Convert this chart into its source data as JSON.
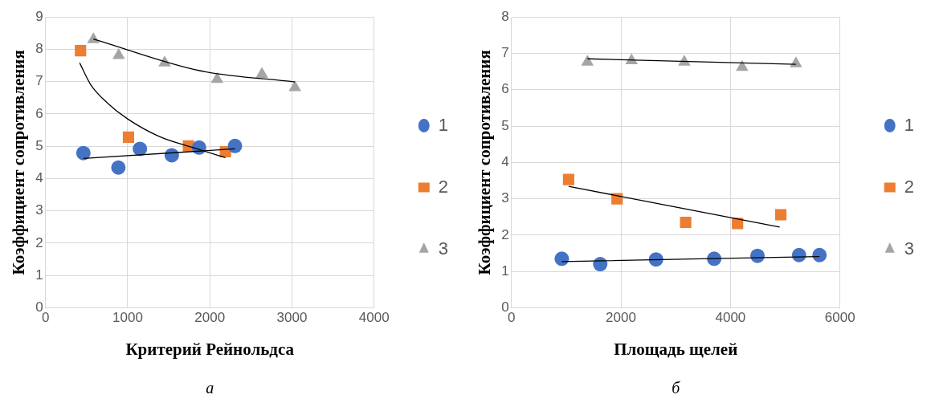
{
  "chart_data": [
    {
      "type": "scatter",
      "xlabel": "Критерий Рейнольдса",
      "ylabel": "Коэффициент сопротивления",
      "xlim": [
        0,
        4000
      ],
      "xticks": [
        0,
        1000,
        2000,
        3000,
        4000
      ],
      "ylim": [
        0,
        9
      ],
      "yticks": [
        0,
        1,
        2,
        3,
        4,
        5,
        6,
        7,
        8,
        9
      ],
      "grid": true,
      "legend": "right",
      "annotations": [
        "а"
      ],
      "series": [
        {
          "name": "1",
          "color": "#4472c4",
          "marker": "circle",
          "x": [
            461,
            887,
            1149,
            1537,
            1869,
            2306
          ],
          "values": [
            4.79,
            4.34,
            4.92,
            4.72,
            4.96,
            5.01
          ]
        },
        {
          "name": "2",
          "color": "#ed7d31",
          "marker": "square",
          "x": [
            426,
            1010,
            1740,
            2190
          ],
          "values": [
            7.96,
            5.28,
            5.01,
            4.83
          ]
        },
        {
          "name": "3",
          "color": "#a5a5a5",
          "marker": "triangle",
          "x": [
            583,
            891,
            1450,
            2089,
            2634,
            3036
          ],
          "values": [
            8.3,
            7.81,
            7.58,
            7.07,
            7.23,
            6.82
          ]
        },
        {
          "type": "line",
          "color": "#000000",
          "marker": "none",
          "line_style": "solid",
          "x": [
            461,
            2306
          ],
          "values": [
            4.62,
            4.92
          ]
        },
        {
          "type": "line",
          "color": "#000000",
          "marker": "none",
          "line_style": "solid",
          "x": [
            416,
            549,
            758,
            1003,
            1387,
            1806,
            2190
          ],
          "values": [
            7.58,
            6.91,
            6.33,
            5.84,
            5.3,
            4.95,
            4.65
          ]
        },
        {
          "type": "line",
          "color": "#000000",
          "marker": "none",
          "line_style": "solid",
          "x": [
            583,
            1876,
            3036
          ],
          "values": [
            8.32,
            7.34,
            6.99
          ]
        }
      ]
    },
    {
      "type": "scatter",
      "xlabel": "Площадь щелей",
      "ylabel": "Коэффициент сопротивления",
      "xlim": [
        0,
        6000
      ],
      "xticks": [
        0,
        2000,
        4000,
        6000
      ],
      "ylim": [
        0,
        8
      ],
      "yticks": [
        0,
        1,
        2,
        3,
        4,
        5,
        6,
        7,
        8
      ],
      "grid": true,
      "legend": "right",
      "annotations": [
        "б"
      ],
      "series": [
        {
          "name": "1",
          "color": "#4472c4",
          "marker": "circle",
          "x": [
            920,
            1622,
            2641,
            3702,
            4493,
            5252,
            5626
          ],
          "values": [
            1.35,
            1.2,
            1.33,
            1.35,
            1.43,
            1.45,
            1.45
          ]
        },
        {
          "name": "2",
          "color": "#ed7d31",
          "marker": "square",
          "x": [
            1045,
            1929,
            3182,
            4129,
            4919
          ],
          "values": [
            3.53,
            3.0,
            2.35,
            2.32,
            2.56
          ]
        },
        {
          "name": "3",
          "color": "#a5a5a5",
          "marker": "triangle",
          "x": [
            1388,
            2194,
            3157,
            4212,
            5195
          ],
          "values": [
            6.76,
            6.8,
            6.76,
            6.62,
            6.72
          ]
        },
        {
          "type": "line",
          "color": "#000000",
          "marker": "none",
          "line_style": "solid",
          "x": [
            920,
            5626
          ],
          "values": [
            1.27,
            1.41
          ]
        },
        {
          "type": "line",
          "color": "#000000",
          "marker": "none",
          "line_style": "solid",
          "x": [
            1045,
            4898
          ],
          "values": [
            3.34,
            2.22
          ]
        },
        {
          "type": "line",
          "color": "#000000",
          "marker": "none",
          "line_style": "solid",
          "x": [
            1388,
            5195
          ],
          "values": [
            6.85,
            6.7
          ]
        }
      ]
    }
  ]
}
